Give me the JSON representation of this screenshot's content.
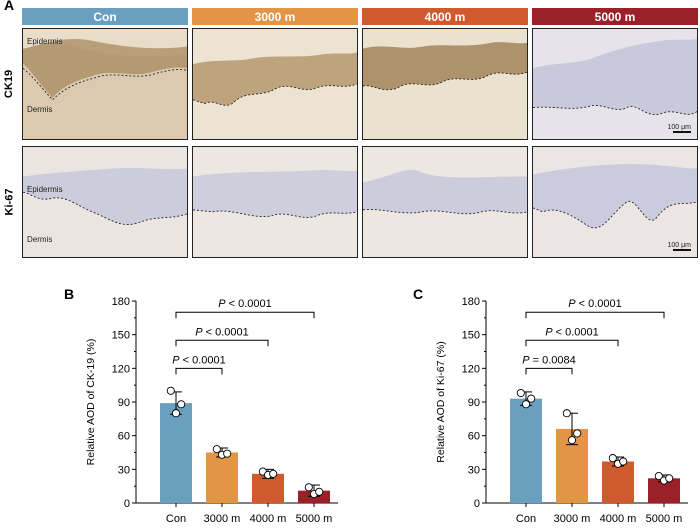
{
  "figure": {
    "panel_a": "A",
    "panel_b": "B",
    "panel_c": "C"
  },
  "groups": [
    {
      "label": "Con",
      "color": "#6b9fc0"
    },
    {
      "label": "3000 m",
      "color": "#e29447"
    },
    {
      "label": "4000 m",
      "color": "#cf5a2c"
    },
    {
      "label": "5000 m",
      "color": "#9a2128"
    }
  ],
  "rows": [
    {
      "label": "CK19",
      "tissue": "brown"
    },
    {
      "label": "Ki-67",
      "tissue": "blue"
    }
  ],
  "tile_labels": {
    "epidermis": "Epidermis",
    "dermis": "Dermis",
    "scale": "100 μm"
  },
  "chart_data": [
    {
      "type": "bar",
      "panel": "B",
      "categories": [
        "Con",
        "3000 m",
        "4000 m",
        "5000 m"
      ],
      "values": [
        89,
        45,
        26,
        11
      ],
      "errors": [
        10,
        4,
        4,
        5
      ],
      "points": [
        [
          100,
          80,
          88
        ],
        [
          48,
          43,
          44
        ],
        [
          28,
          25,
          26
        ],
        [
          14,
          8,
          10
        ]
      ],
      "ylabel": "Relative AOD of CK-19 (%)",
      "ylim": [
        0,
        180
      ],
      "yticks": [
        0,
        30,
        60,
        90,
        120,
        150,
        180
      ],
      "comparisons": [
        {
          "from": 0,
          "to": 1,
          "italic": "P",
          "text": " < 0.0001"
        },
        {
          "from": 0,
          "to": 2,
          "italic": "P",
          "text": " < 0.0001"
        },
        {
          "from": 0,
          "to": 3,
          "italic": "P",
          "text": " < 0.0001"
        }
      ]
    },
    {
      "type": "bar",
      "panel": "C",
      "categories": [
        "Con",
        "3000 m",
        "4000 m",
        "5000 m"
      ],
      "values": [
        93,
        66,
        37,
        22
      ],
      "errors": [
        6,
        14,
        4,
        3
      ],
      "points": [
        [
          98,
          88,
          93
        ],
        [
          80,
          56,
          62
        ],
        [
          40,
          35,
          37
        ],
        [
          24,
          20,
          22
        ]
      ],
      "ylabel": "Relative AOD of Ki-67 (%)",
      "ylim": [
        0,
        180
      ],
      "yticks": [
        0,
        30,
        60,
        90,
        120,
        150,
        180
      ],
      "comparisons": [
        {
          "from": 0,
          "to": 1,
          "italic": "P",
          "text": " = 0.0084"
        },
        {
          "from": 0,
          "to": 2,
          "italic": "P",
          "text": " < 0.0001"
        },
        {
          "from": 0,
          "to": 3,
          "italic": "P",
          "text": " < 0.0001"
        }
      ]
    }
  ]
}
